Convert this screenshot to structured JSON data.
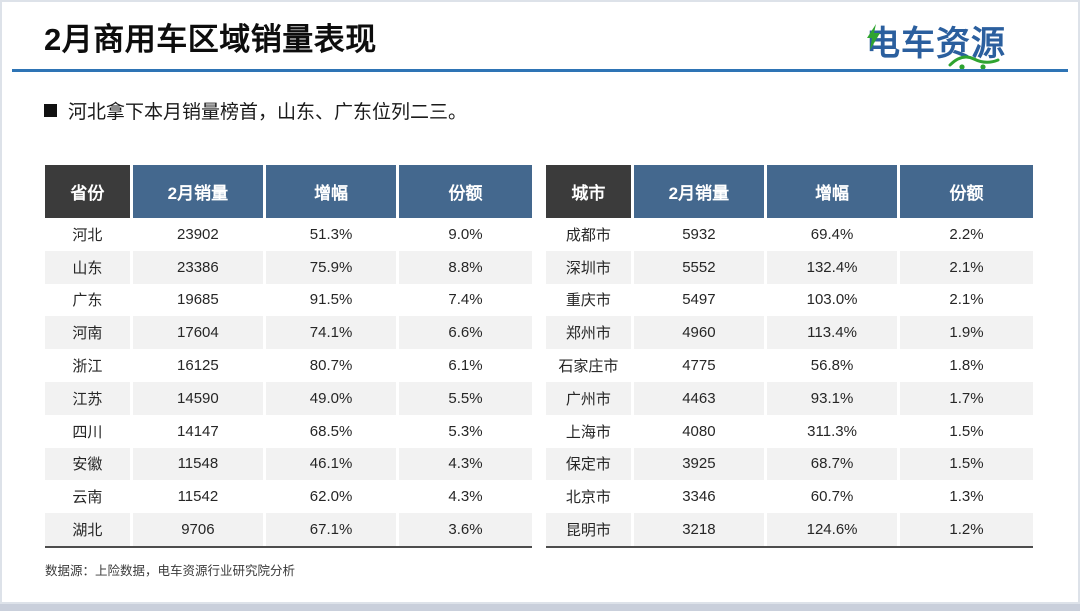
{
  "slide": {
    "title": "2月商用车区域销量表现",
    "logo_text": "电车资源",
    "bullet_text": "河北拿下本月销量榜首，山东、广东位列二三。",
    "source_note": "数据源：上险数据，电车资源行业研究院分析"
  },
  "colors": {
    "accent_line_blue": "#2E74B5",
    "header_first_col": "#3B3B3B",
    "header_blue": "#44688E",
    "row_alt_gray": "#F2F2F2",
    "logo_blue": "#2B5F9E",
    "logo_green": "#2FA430",
    "bottom_strip": "#C9CFDB"
  },
  "chart_data": [
    {
      "type": "table",
      "headers": [
        "省份",
        "2月销量",
        "增幅",
        "份额"
      ],
      "rows": [
        [
          "河北",
          "23902",
          "51.3%",
          "9.0%"
        ],
        [
          "山东",
          "23386",
          "75.9%",
          "8.8%"
        ],
        [
          "广东",
          "19685",
          "91.5%",
          "7.4%"
        ],
        [
          "河南",
          "17604",
          "74.1%",
          "6.6%"
        ],
        [
          "浙江",
          "16125",
          "80.7%",
          "6.1%"
        ],
        [
          "江苏",
          "14590",
          "49.0%",
          "5.5%"
        ],
        [
          "四川",
          "14147",
          "68.5%",
          "5.3%"
        ],
        [
          "安徽",
          "11548",
          "46.1%",
          "4.3%"
        ],
        [
          "云南",
          "11542",
          "62.0%",
          "4.3%"
        ],
        [
          "湖北",
          "9706",
          "67.1%",
          "3.6%"
        ]
      ]
    },
    {
      "type": "table",
      "headers": [
        "城市",
        "2月销量",
        "增幅",
        "份额"
      ],
      "rows": [
        [
          "成都市",
          "5932",
          "69.4%",
          "2.2%"
        ],
        [
          "深圳市",
          "5552",
          "132.4%",
          "2.1%"
        ],
        [
          "重庆市",
          "5497",
          "103.0%",
          "2.1%"
        ],
        [
          "郑州市",
          "4960",
          "113.4%",
          "1.9%"
        ],
        [
          "石家庄市",
          "4775",
          "56.8%",
          "1.8%"
        ],
        [
          "广州市",
          "4463",
          "93.1%",
          "1.7%"
        ],
        [
          "上海市",
          "4080",
          "311.3%",
          "1.5%"
        ],
        [
          "保定市",
          "3925",
          "68.7%",
          "1.5%"
        ],
        [
          "北京市",
          "3346",
          "60.7%",
          "1.3%"
        ],
        [
          "昆明市",
          "3218",
          "124.6%",
          "1.2%"
        ]
      ]
    }
  ]
}
